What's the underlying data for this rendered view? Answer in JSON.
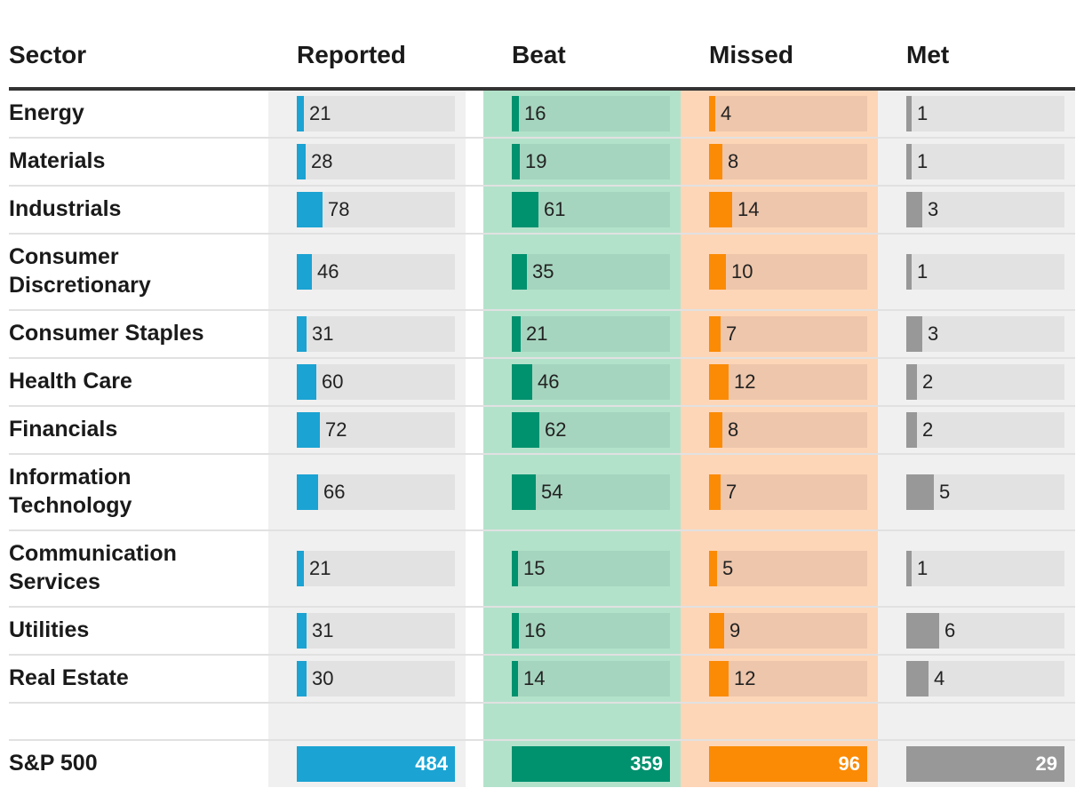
{
  "chart_data": {
    "type": "table",
    "columns": [
      {
        "key": "reported",
        "label": "Reported",
        "color": "#1ba3d3",
        "track": "#e2e2e2",
        "background": "#f0f0f0",
        "scale_max": 484
      },
      {
        "key": "beat",
        "label": "Beat",
        "color": "#00916e",
        "track": "#a6d5bf",
        "background": "#b3e2cb",
        "scale_max": 359
      },
      {
        "key": "missed",
        "label": "Missed",
        "color": "#fb8b05",
        "track": "#eec6ab",
        "background": "#fdd6b8",
        "scale_max": 96
      },
      {
        "key": "met",
        "label": "Met",
        "color": "#989898",
        "track": "#e2e2e2",
        "background": "#f0f0f0",
        "scale_max": 29
      }
    ],
    "sector_header": "Sector",
    "rows": [
      {
        "sector": "Energy",
        "reported": 21,
        "beat": 16,
        "missed": 4,
        "met": 1
      },
      {
        "sector": "Materials",
        "reported": 28,
        "beat": 19,
        "missed": 8,
        "met": 1
      },
      {
        "sector": "Industrials",
        "reported": 78,
        "beat": 61,
        "missed": 14,
        "met": 3
      },
      {
        "sector": "Consumer Discretionary",
        "reported": 46,
        "beat": 35,
        "missed": 10,
        "met": 1
      },
      {
        "sector": "Consumer Staples",
        "reported": 31,
        "beat": 21,
        "missed": 7,
        "met": 3
      },
      {
        "sector": "Health Care",
        "reported": 60,
        "beat": 46,
        "missed": 12,
        "met": 2
      },
      {
        "sector": "Financials",
        "reported": 72,
        "beat": 62,
        "missed": 8,
        "met": 2
      },
      {
        "sector": "Information Technology",
        "reported": 66,
        "beat": 54,
        "missed": 7,
        "met": 5
      },
      {
        "sector": "Communication Services",
        "reported": 21,
        "beat": 15,
        "missed": 5,
        "met": 1
      },
      {
        "sector": "Utilities",
        "reported": 31,
        "beat": 16,
        "missed": 9,
        "met": 6
      },
      {
        "sector": "Real Estate",
        "reported": 30,
        "beat": 14,
        "missed": 12,
        "met": 4
      }
    ],
    "total": {
      "sector": "S&P 500",
      "reported": 484,
      "beat": 359,
      "missed": 96,
      "met": 29
    }
  }
}
